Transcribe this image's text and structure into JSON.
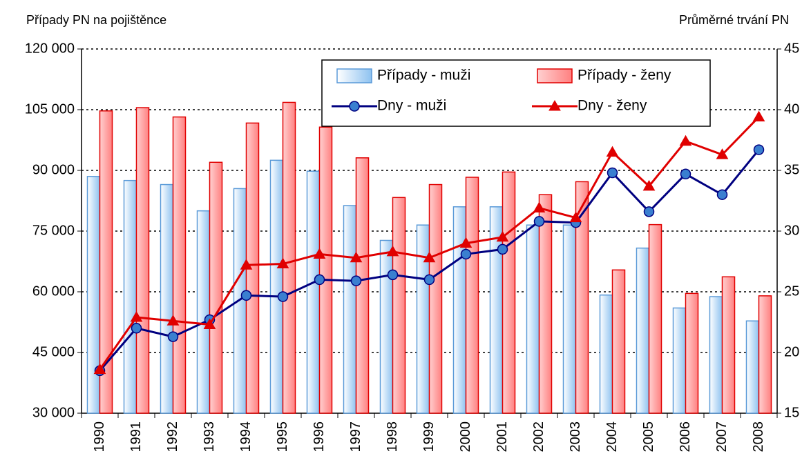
{
  "chart_data": {
    "type": "bar_line",
    "y_axis_label": "Případy PN na pojištěnce",
    "y2_axis_label": "Průměrné trvání PN",
    "categories": [
      "1990",
      "1991",
      "1992",
      "1993",
      "1994",
      "1995",
      "1996",
      "1997",
      "1998",
      "1999",
      "2000",
      "2001",
      "2002",
      "2003",
      "2004",
      "2005",
      "2006",
      "2007",
      "2008"
    ],
    "series": [
      {
        "name": "Případy - muži",
        "type": "bar",
        "color": "#a8d0f5",
        "border": "#5a9ad8",
        "values": [
          88500,
          87500,
          86500,
          80000,
          85500,
          92500,
          89800,
          81300,
          72700,
          76500,
          81000,
          81000,
          76500,
          76500,
          59200,
          70800,
          56000,
          58800,
          52800
        ]
      },
      {
        "name": "Případy - ženy",
        "type": "bar",
        "color": "#ff9a9a",
        "border": "#e00000",
        "values": [
          104700,
          105500,
          103200,
          92000,
          101700,
          106800,
          100700,
          93100,
          83300,
          86500,
          88300,
          89600,
          84000,
          87200,
          65400,
          76600,
          59600,
          63700,
          59000
        ]
      },
      {
        "name": "Dny - muži",
        "type": "line",
        "axis": "y2",
        "color": "#000080",
        "marker": "circle",
        "marker_fill": "#3a7fd0",
        "values": [
          18.5,
          22.0,
          21.3,
          22.7,
          24.7,
          24.6,
          26.0,
          25.9,
          26.4,
          26.0,
          28.1,
          28.5,
          30.8,
          30.7,
          34.8,
          31.6,
          34.7,
          33.0,
          36.7
        ]
      },
      {
        "name": "Dny - ženy",
        "type": "line",
        "axis": "y2",
        "color": "#e00000",
        "marker": "triangle",
        "marker_fill": "#e00000",
        "values": [
          18.6,
          22.9,
          22.6,
          22.3,
          27.2,
          27.3,
          28.1,
          27.8,
          28.3,
          27.8,
          29.0,
          29.5,
          31.9,
          31.1,
          36.5,
          33.7,
          37.4,
          36.3,
          39.4
        ]
      }
    ],
    "ylim": [
      30000,
      120000
    ],
    "yticks": [
      {
        "value": 30000,
        "label": "30 000"
      },
      {
        "value": 45000,
        "label": "45 000"
      },
      {
        "value": 60000,
        "label": "60 000"
      },
      {
        "value": 75000,
        "label": "75 000"
      },
      {
        "value": 90000,
        "label": "90 000"
      },
      {
        "value": 105000,
        "label": "105 000"
      },
      {
        "value": 120000,
        "label": "120 000"
      }
    ],
    "y2lim": [
      15,
      45
    ],
    "y2ticks": [
      15,
      20,
      25,
      30,
      35,
      40,
      45
    ],
    "grid": true
  }
}
